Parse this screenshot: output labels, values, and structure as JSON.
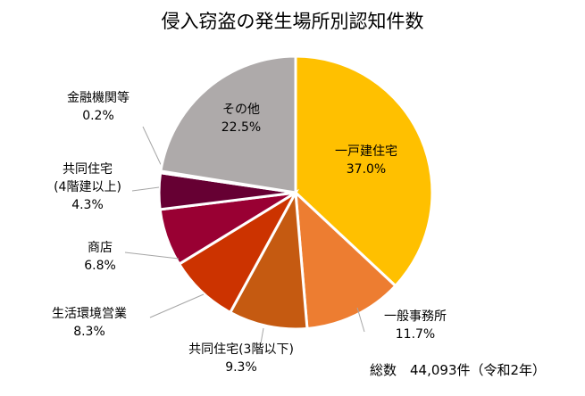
{
  "chart_data": {
    "type": "pie",
    "title": "侵入窃盗の発生場所別認知件数",
    "start": "top",
    "direction": "clockwise",
    "slices": [
      {
        "label": "一戸建住宅",
        "value": 37.0,
        "pct": "37.0%",
        "color": "#FFC000"
      },
      {
        "label": "一般事務所",
        "value": 11.7,
        "pct": "11.7%",
        "color": "#ED7D31"
      },
      {
        "label": "共同住宅(3階以下)",
        "value": 9.3,
        "pct": "9.3%",
        "color": "#C55A11"
      },
      {
        "label": "生活環境営業",
        "value": 8.3,
        "pct": "8.3%",
        "color": "#CC3300"
      },
      {
        "label": "商店",
        "value": 6.8,
        "pct": "6.8%",
        "color": "#990033"
      },
      {
        "label": "共同住宅\n(4階建以上)",
        "value": 4.3,
        "pct": "4.3%",
        "color": "#660033"
      },
      {
        "label": "金融機関等",
        "value": 0.2,
        "pct": "0.2%",
        "color": "#7F6000"
      },
      {
        "label": "その他",
        "value": 22.5,
        "pct": "22.5%",
        "color": "#AEAAAA"
      }
    ],
    "total": "総数　44,093件（令和2年）"
  }
}
